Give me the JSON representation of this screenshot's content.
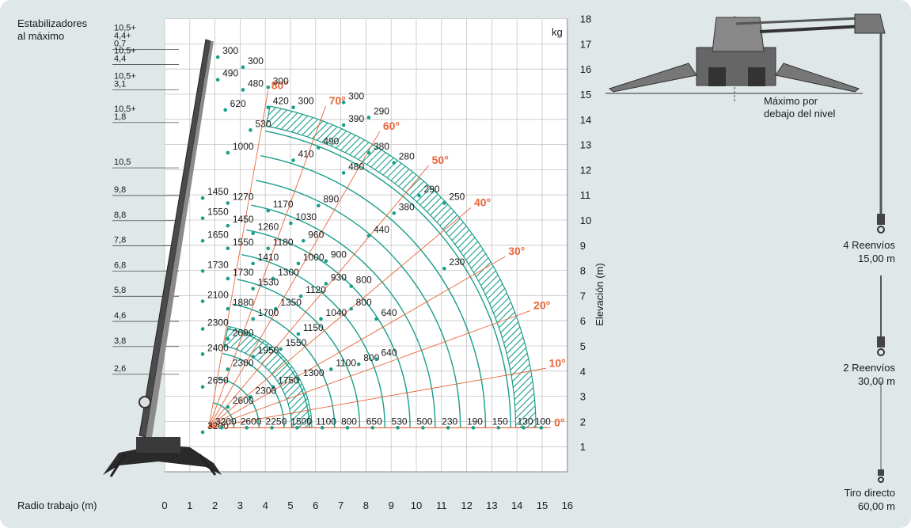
{
  "header": {
    "stabilizer_label_line1": "Estabilizadores",
    "stabilizer_label_line2": "al máximo",
    "unit": "kg",
    "ylabel": "Elevación (m)",
    "xlabel": "Radio trabajo (m)"
  },
  "colors": {
    "grid": "#c4c4c4",
    "arc": "#1a9e8a",
    "angle": "#e8663a",
    "panel": "#dfe7e9",
    "plot": "#ffffff",
    "text": "#1a1a1a"
  },
  "icons": [
    "crane-silhouette-icon",
    "crane-front-view-icon",
    "hook-icon"
  ],
  "side_panel": {
    "below_level_line1": "Máximo por",
    "below_level_line2": "debajo del nivel",
    "reeving": [
      {
        "line1": "4 Reenvíos",
        "line2": "15,00 m"
      },
      {
        "line1": "2 Reenvíos",
        "line2": "30,00 m"
      },
      {
        "line1": "Tiro directo",
        "line2": "60,00 m"
      }
    ]
  },
  "chart_data": {
    "type": "load_chart",
    "xlabel": "Radio trabajo (m)",
    "ylabel": "Elevación (m)",
    "unit": "kg",
    "xlim": [
      0,
      16
    ],
    "ylim": [
      0,
      18
    ],
    "x_ticks": [
      0,
      1,
      2,
      3,
      4,
      5,
      6,
      7,
      8,
      9,
      10,
      11,
      12,
      13,
      14,
      15,
      16
    ],
    "y_ticks": [
      1,
      2,
      3,
      4,
      5,
      6,
      7,
      8,
      9,
      10,
      11,
      12,
      13,
      14,
      15,
      16,
      17,
      18
    ],
    "angles": [
      {
        "label": "80°",
        "deg": 80
      },
      {
        "label": "70°",
        "deg": 70
      },
      {
        "label": "60°",
        "deg": 60
      },
      {
        "label": "50°",
        "deg": 50
      },
      {
        "label": "40°",
        "deg": 40
      },
      {
        "label": "30°",
        "deg": 30
      },
      {
        "label": "20°",
        "deg": 20
      },
      {
        "label": "10°",
        "deg": 10
      },
      {
        "label": "0°",
        "deg": 0
      }
    ],
    "boom_lengths": [
      {
        "label": "10,5+\n4,4+\n0,7"
      },
      {
        "label": "10,5+\n4,4"
      },
      {
        "label": "10,5+\n3,1"
      },
      {
        "label": "10,5+\n1,8"
      },
      {
        "label": "10,5"
      },
      {
        "label": "9,8"
      },
      {
        "label": "8,8"
      },
      {
        "label": "7,8"
      },
      {
        "label": "6,8"
      },
      {
        "label": "5,8"
      },
      {
        "label": "4,6"
      },
      {
        "label": "3,8"
      },
      {
        "label": "2,6"
      }
    ],
    "load_labels": [
      {
        "text": "300",
        "x": 2.3,
        "y": 16.6
      },
      {
        "text": "300",
        "x": 3.3,
        "y": 16.2
      },
      {
        "text": "490",
        "x": 2.3,
        "y": 15.7
      },
      {
        "text": "480",
        "x": 3.3,
        "y": 15.3
      },
      {
        "text": "300",
        "x": 4.3,
        "y": 15.4
      },
      {
        "text": "620",
        "x": 2.6,
        "y": 14.5
      },
      {
        "text": "420",
        "x": 4.3,
        "y": 14.6
      },
      {
        "text": "300",
        "x": 5.3,
        "y": 14.6
      },
      {
        "text": "530",
        "x": 3.6,
        "y": 13.7
      },
      {
        "text": "300",
        "x": 7.3,
        "y": 14.8
      },
      {
        "text": "290",
        "x": 8.3,
        "y": 14.2
      },
      {
        "text": "390",
        "x": 7.3,
        "y": 13.9
      },
      {
        "text": "1000",
        "x": 2.7,
        "y": 12.8
      },
      {
        "text": "410",
        "x": 5.3,
        "y": 12.5
      },
      {
        "text": "490",
        "x": 6.3,
        "y": 13.0
      },
      {
        "text": "380",
        "x": 8.3,
        "y": 12.8
      },
      {
        "text": "280",
        "x": 9.3,
        "y": 12.4
      },
      {
        "text": "480",
        "x": 7.3,
        "y": 12.0
      },
      {
        "text": "290",
        "x": 10.3,
        "y": 11.1
      },
      {
        "text": "250",
        "x": 11.3,
        "y": 10.8
      },
      {
        "text": "890",
        "x": 6.3,
        "y": 10.7
      },
      {
        "text": "380",
        "x": 9.3,
        "y": 10.4
      },
      {
        "text": "440",
        "x": 8.3,
        "y": 9.5
      },
      {
        "text": "230",
        "x": 11.3,
        "y": 8.2
      },
      {
        "text": "1450",
        "x": 1.7,
        "y": 11.0
      },
      {
        "text": "1270",
        "x": 2.7,
        "y": 10.8
      },
      {
        "text": "1170",
        "x": 4.3,
        "y": 10.5
      },
      {
        "text": "1550",
        "x": 1.7,
        "y": 10.2
      },
      {
        "text": "1450",
        "x": 2.7,
        "y": 9.9
      },
      {
        "text": "1030",
        "x": 5.2,
        "y": 10.0
      },
      {
        "text": "1260",
        "x": 3.7,
        "y": 9.6
      },
      {
        "text": "960",
        "x": 5.7,
        "y": 9.3
      },
      {
        "text": "1650",
        "x": 1.7,
        "y": 9.3
      },
      {
        "text": "1550",
        "x": 2.7,
        "y": 9.0
      },
      {
        "text": "1180",
        "x": 4.3,
        "y": 9.0
      },
      {
        "text": "1410",
        "x": 3.7,
        "y": 8.4
      },
      {
        "text": "1000",
        "x": 5.5,
        "y": 8.4
      },
      {
        "text": "900",
        "x": 6.6,
        "y": 8.5
      },
      {
        "text": "1730",
        "x": 1.7,
        "y": 8.1
      },
      {
        "text": "1730",
        "x": 2.7,
        "y": 7.8
      },
      {
        "text": "1300",
        "x": 4.5,
        "y": 7.8
      },
      {
        "text": "930",
        "x": 6.6,
        "y": 7.6
      },
      {
        "text": "800",
        "x": 7.6,
        "y": 7.5
      },
      {
        "text": "1530",
        "x": 3.7,
        "y": 7.4
      },
      {
        "text": "1120",
        "x": 5.6,
        "y": 7.1
      },
      {
        "text": "2100",
        "x": 1.7,
        "y": 6.9
      },
      {
        "text": "1880",
        "x": 2.7,
        "y": 6.6
      },
      {
        "text": "1350",
        "x": 4.6,
        "y": 6.6
      },
      {
        "text": "800",
        "x": 7.6,
        "y": 6.6
      },
      {
        "text": "1700",
        "x": 3.7,
        "y": 6.2
      },
      {
        "text": "1040",
        "x": 6.4,
        "y": 6.2
      },
      {
        "text": "640",
        "x": 8.6,
        "y": 6.2
      },
      {
        "text": "2300",
        "x": 1.7,
        "y": 5.8
      },
      {
        "text": "2090",
        "x": 2.7,
        "y": 5.4
      },
      {
        "text": "1150",
        "x": 5.5,
        "y": 5.6
      },
      {
        "text": "1550",
        "x": 4.8,
        "y": 5.0
      },
      {
        "text": "1950",
        "x": 3.7,
        "y": 4.7
      },
      {
        "text": "2400",
        "x": 1.7,
        "y": 4.8
      },
      {
        "text": "2300",
        "x": 2.7,
        "y": 4.2
      },
      {
        "text": "1100",
        "x": 6.8,
        "y": 4.2
      },
      {
        "text": "800",
        "x": 7.9,
        "y": 4.4
      },
      {
        "text": "640",
        "x": 8.6,
        "y": 4.6
      },
      {
        "text": "1300",
        "x": 5.5,
        "y": 3.8
      },
      {
        "text": "1750",
        "x": 4.5,
        "y": 3.5
      },
      {
        "text": "2650",
        "x": 1.7,
        "y": 3.5
      },
      {
        "text": "2300",
        "x": 3.6,
        "y": 3.1
      },
      {
        "text": "2600",
        "x": 2.7,
        "y": 2.7
      },
      {
        "text": "3200",
        "x": 1.7,
        "y": 1.7
      }
    ],
    "ground_loads": [
      {
        "text": "3200",
        "x": 2.2
      },
      {
        "text": "2600",
        "x": 3.2
      },
      {
        "text": "2250",
        "x": 4.2
      },
      {
        "text": "1500",
        "x": 5.2
      },
      {
        "text": "1100",
        "x": 6.2
      },
      {
        "text": "800",
        "x": 7.2
      },
      {
        "text": "650",
        "x": 8.2
      },
      {
        "text": "530",
        "x": 9.2
      },
      {
        "text": "500",
        "x": 10.2
      },
      {
        "text": "230",
        "x": 11.2
      },
      {
        "text": "190",
        "x": 12.2
      },
      {
        "text": "150",
        "x": 13.2
      },
      {
        "text": "130",
        "x": 14.2
      },
      {
        "text": "100",
        "x": 14.9
      }
    ]
  }
}
